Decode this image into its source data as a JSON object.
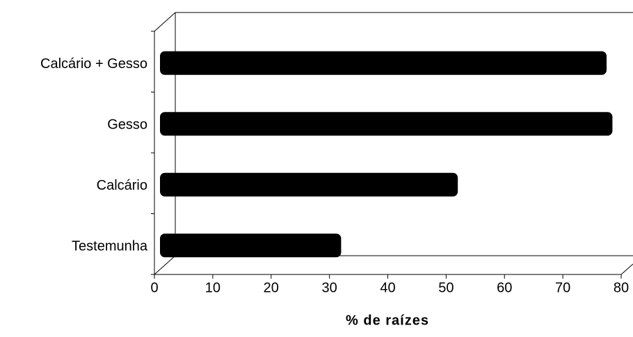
{
  "chart_data": {
    "type": "bar",
    "orientation": "horizontal",
    "xlabel": "% de raízes",
    "categories": [
      "Calcário + Gesso",
      "Gesso",
      "Calcário",
      "Testemunha"
    ],
    "values": [
      77.5,
      78.5,
      52,
      32
    ],
    "color": "#000000",
    "xlim": [
      0,
      80
    ],
    "xticks": [
      0,
      10,
      20,
      30,
      40,
      50,
      60,
      70,
      80
    ]
  }
}
